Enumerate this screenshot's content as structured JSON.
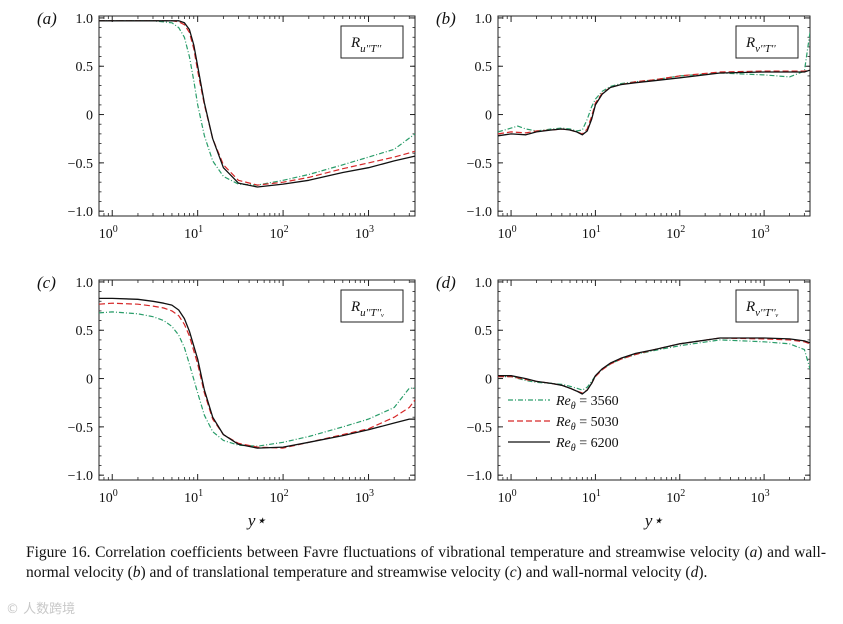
{
  "figure": {
    "caption_label": "Figure 16.",
    "caption_parts": [
      "Correlation coefficients between Favre fluctuations of vibrational temperature and streamwise velocity (",
      "a",
      ") and wall-normal velocity (",
      "b",
      ") and of translational temperature and streamwise velocity (",
      "c",
      ") and wall-normal velocity (",
      "d",
      ")."
    ],
    "shared_xlabel": "y⋆",
    "watermark": "© 人数跨境"
  },
  "chart_data": [
    {
      "type": "line",
      "panel": "(a)",
      "title_box": "R_{u''T''}",
      "xscale": "log",
      "xlim": [
        0.7,
        3500
      ],
      "ylim": [
        -1.05,
        1.02
      ],
      "xticks": [
        "10^0",
        "10^1",
        "10^2",
        "10^3"
      ],
      "yticks": [
        "1.0",
        "0.5",
        "0",
        "−0.5",
        "−1.0"
      ],
      "series": [
        {
          "name": "Reθ = 3560",
          "color": "#2a9d6a",
          "style": "dashdot",
          "x": [
            0.7,
            3,
            5,
            6,
            7,
            8,
            9,
            10,
            12,
            15,
            20,
            30,
            50,
            100,
            200,
            500,
            1000,
            2000,
            3500
          ],
          "y": [
            0.97,
            0.97,
            0.95,
            0.9,
            0.8,
            0.6,
            0.35,
            0.1,
            -0.22,
            -0.48,
            -0.64,
            -0.72,
            -0.73,
            -0.68,
            -0.62,
            -0.52,
            -0.44,
            -0.36,
            -0.2
          ]
        },
        {
          "name": "Reθ = 5030",
          "color": "#d62728",
          "style": "dashed",
          "x": [
            0.7,
            3,
            5,
            6,
            7,
            8,
            9,
            10,
            12,
            15,
            20,
            30,
            50,
            100,
            200,
            500,
            1000,
            2000,
            3500
          ],
          "y": [
            0.97,
            0.97,
            0.97,
            0.96,
            0.93,
            0.85,
            0.68,
            0.45,
            0.1,
            -0.25,
            -0.52,
            -0.68,
            -0.73,
            -0.7,
            -0.65,
            -0.56,
            -0.5,
            -0.44,
            -0.38
          ]
        },
        {
          "name": "Reθ = 6200",
          "color": "#111111",
          "style": "solid",
          "x": [
            0.7,
            3,
            5,
            6,
            7,
            8,
            9,
            10,
            12,
            15,
            20,
            30,
            50,
            100,
            200,
            500,
            1000,
            2000,
            3500
          ],
          "y": [
            0.97,
            0.97,
            0.97,
            0.97,
            0.95,
            0.88,
            0.72,
            0.5,
            0.12,
            -0.25,
            -0.55,
            -0.71,
            -0.75,
            -0.72,
            -0.68,
            -0.6,
            -0.55,
            -0.48,
            -0.43
          ]
        }
      ]
    },
    {
      "type": "line",
      "panel": "(b)",
      "title_box": "R_{v''T''}",
      "xscale": "log",
      "xlim": [
        0.7,
        3500
      ],
      "ylim": [
        -1.05,
        1.02
      ],
      "xticks": [
        "10^0",
        "10^1",
        "10^2",
        "10^3"
      ],
      "yticks": [
        "1.0",
        "0.5",
        "0",
        "−0.5",
        "−1.0"
      ],
      "series": [
        {
          "name": "Reθ = 3560",
          "color": "#2a9d6a",
          "style": "dashdot",
          "x": [
            0.7,
            1.0,
            1.2,
            1.5,
            2,
            3,
            4,
            5,
            6,
            7,
            8,
            9,
            10,
            12,
            15,
            20,
            30,
            50,
            100,
            300,
            1000,
            2000,
            3000,
            3500
          ],
          "y": [
            -0.18,
            -0.14,
            -0.12,
            -0.15,
            -0.17,
            -0.15,
            -0.14,
            -0.15,
            -0.17,
            -0.16,
            -0.05,
            0.08,
            0.16,
            0.24,
            0.29,
            0.32,
            0.34,
            0.36,
            0.4,
            0.43,
            0.41,
            0.39,
            0.45,
            0.85
          ]
        },
        {
          "name": "Reθ = 5030",
          "color": "#d62728",
          "style": "dashed",
          "x": [
            0.7,
            1.0,
            1.5,
            2,
            3,
            4,
            5,
            6,
            7,
            8,
            9,
            10,
            12,
            15,
            20,
            30,
            50,
            100,
            300,
            1000,
            2000,
            3000,
            3500
          ],
          "y": [
            -0.2,
            -0.18,
            -0.19,
            -0.17,
            -0.16,
            -0.15,
            -0.16,
            -0.18,
            -0.2,
            -0.15,
            -0.02,
            0.12,
            0.22,
            0.28,
            0.31,
            0.34,
            0.36,
            0.4,
            0.44,
            0.45,
            0.45,
            0.45,
            0.46
          ]
        },
        {
          "name": "Reθ = 6200",
          "color": "#111111",
          "style": "solid",
          "x": [
            0.7,
            1.0,
            1.5,
            2,
            3,
            4,
            5,
            6,
            7,
            8,
            9,
            10,
            12,
            15,
            20,
            30,
            50,
            100,
            300,
            1000,
            2000,
            3000,
            3500
          ],
          "y": [
            -0.22,
            -0.2,
            -0.21,
            -0.18,
            -0.16,
            -0.15,
            -0.16,
            -0.18,
            -0.21,
            -0.17,
            -0.05,
            0.1,
            0.21,
            0.28,
            0.31,
            0.33,
            0.35,
            0.38,
            0.43,
            0.44,
            0.44,
            0.44,
            0.46
          ]
        }
      ]
    },
    {
      "type": "line",
      "panel": "(c)",
      "title_box": "R_{u''T''_V}",
      "xscale": "log",
      "xlim": [
        0.7,
        3500
      ],
      "ylim": [
        -1.05,
        1.02
      ],
      "xticks": [
        "10^0",
        "10^1",
        "10^2",
        "10^3"
      ],
      "yticks": [
        "1.0",
        "0.5",
        "0",
        "−0.5",
        "−1.0"
      ],
      "series": [
        {
          "name": "Reθ = 3560",
          "color": "#2a9d6a",
          "style": "dashdot",
          "x": [
            0.7,
            1,
            2,
            3,
            4,
            5,
            6,
            7,
            8,
            10,
            12,
            15,
            20,
            30,
            50,
            100,
            200,
            500,
            1000,
            2000,
            3000,
            3500
          ],
          "y": [
            0.68,
            0.69,
            0.67,
            0.64,
            0.6,
            0.54,
            0.45,
            0.32,
            0.15,
            -0.15,
            -0.38,
            -0.55,
            -0.64,
            -0.69,
            -0.7,
            -0.66,
            -0.6,
            -0.5,
            -0.42,
            -0.3,
            -0.1,
            -0.1
          ]
        },
        {
          "name": "Reθ = 5030",
          "color": "#d62728",
          "style": "dashed",
          "x": [
            0.7,
            1,
            2,
            3,
            4,
            5,
            6,
            7,
            8,
            10,
            12,
            15,
            20,
            30,
            50,
            100,
            200,
            500,
            1000,
            2000,
            3000,
            3500
          ],
          "y": [
            0.77,
            0.78,
            0.77,
            0.75,
            0.73,
            0.7,
            0.65,
            0.56,
            0.44,
            0.15,
            -0.15,
            -0.42,
            -0.58,
            -0.67,
            -0.71,
            -0.72,
            -0.66,
            -0.58,
            -0.52,
            -0.4,
            -0.3,
            -0.22
          ]
        },
        {
          "name": "Reθ = 6200",
          "color": "#111111",
          "style": "solid",
          "x": [
            0.7,
            1,
            2,
            3,
            4,
            5,
            6,
            7,
            8,
            10,
            12,
            15,
            20,
            30,
            50,
            100,
            200,
            500,
            1000,
            2000,
            3000,
            3500
          ],
          "y": [
            0.83,
            0.83,
            0.82,
            0.8,
            0.78,
            0.76,
            0.71,
            0.62,
            0.49,
            0.2,
            -0.12,
            -0.4,
            -0.58,
            -0.68,
            -0.72,
            -0.71,
            -0.66,
            -0.59,
            -0.53,
            -0.46,
            -0.42,
            -0.42
          ]
        }
      ]
    },
    {
      "type": "line",
      "panel": "(d)",
      "title_box": "R_{v''T''_V}",
      "xscale": "log",
      "xlim": [
        0.7,
        3500
      ],
      "ylim": [
        -1.05,
        1.02
      ],
      "xticks": [
        "10^0",
        "10^1",
        "10^2",
        "10^3"
      ],
      "yticks": [
        "1.0",
        "0.5",
        "0",
        "−0.5",
        "−1.0"
      ],
      "legend": "lower-left",
      "series": [
        {
          "name": "Reθ = 3560",
          "color": "#2a9d6a",
          "style": "dashdot",
          "x": [
            0.7,
            1.0,
            1.5,
            2,
            3,
            4,
            5,
            6,
            7,
            8,
            9,
            10,
            12,
            15,
            20,
            30,
            50,
            100,
            300,
            1000,
            2000,
            3000,
            3500
          ],
          "y": [
            0.02,
            0.02,
            -0.02,
            -0.04,
            -0.05,
            -0.06,
            -0.08,
            -0.1,
            -0.12,
            -0.09,
            -0.03,
            0.03,
            0.1,
            0.15,
            0.2,
            0.25,
            0.29,
            0.34,
            0.4,
            0.38,
            0.36,
            0.3,
            0.1
          ]
        },
        {
          "name": "Reθ = 5030",
          "color": "#d62728",
          "style": "dashed",
          "x": [
            0.7,
            1.0,
            1.5,
            2,
            3,
            4,
            5,
            6,
            7,
            8,
            9,
            10,
            12,
            15,
            20,
            30,
            50,
            100,
            300,
            1000,
            2000,
            3000,
            3500
          ],
          "y": [
            0.02,
            0.02,
            -0.01,
            -0.03,
            -0.05,
            -0.07,
            -0.1,
            -0.13,
            -0.15,
            -0.12,
            -0.05,
            0.02,
            0.09,
            0.15,
            0.2,
            0.25,
            0.3,
            0.36,
            0.42,
            0.41,
            0.4,
            0.38,
            0.36
          ]
        },
        {
          "name": "Reθ = 6200",
          "color": "#111111",
          "style": "solid",
          "x": [
            0.7,
            1.0,
            1.5,
            2,
            3,
            4,
            5,
            6,
            7,
            8,
            9,
            10,
            12,
            15,
            20,
            30,
            50,
            100,
            300,
            1000,
            2000,
            3000,
            3500
          ],
          "y": [
            0.03,
            0.03,
            0.0,
            -0.03,
            -0.05,
            -0.07,
            -0.1,
            -0.13,
            -0.16,
            -0.12,
            -0.05,
            0.03,
            0.1,
            0.16,
            0.21,
            0.26,
            0.3,
            0.36,
            0.42,
            0.42,
            0.41,
            0.39,
            0.37
          ]
        }
      ]
    }
  ]
}
